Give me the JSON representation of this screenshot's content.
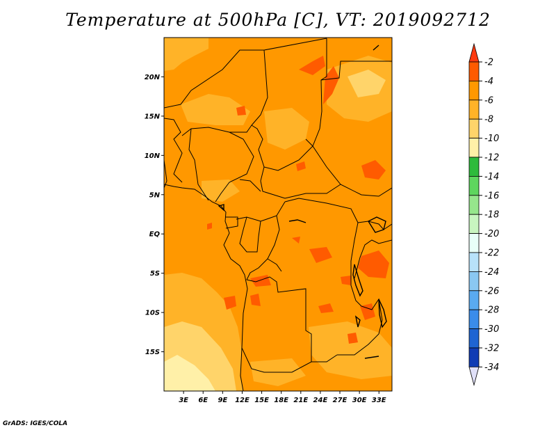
{
  "title": "Temperature at 500hPa [C], VT: 2019092712",
  "credit": "GrADS: IGES/COLA",
  "map": {
    "lon_range": [
      0,
      35
    ],
    "lat_range": [
      -20,
      25
    ],
    "lon_ticks": [
      {
        "value": 3,
        "label": "3E"
      },
      {
        "value": 6,
        "label": "6E"
      },
      {
        "value": 9,
        "label": "9E"
      },
      {
        "value": 12,
        "label": "12E"
      },
      {
        "value": 15,
        "label": "15E"
      },
      {
        "value": 18,
        "label": "18E"
      },
      {
        "value": 21,
        "label": "21E"
      },
      {
        "value": 24,
        "label": "24E"
      },
      {
        "value": 27,
        "label": "27E"
      },
      {
        "value": 30,
        "label": "30E"
      },
      {
        "value": 33,
        "label": "33E"
      }
    ],
    "lat_ticks": [
      {
        "value": 20,
        "label": "20N"
      },
      {
        "value": 15,
        "label": "15N"
      },
      {
        "value": 10,
        "label": "10N"
      },
      {
        "value": 5,
        "label": "5N"
      },
      {
        "value": 0,
        "label": "EQ"
      },
      {
        "value": -5,
        "label": "5S"
      },
      {
        "value": -10,
        "label": "10S"
      },
      {
        "value": -15,
        "label": "15S"
      }
    ]
  },
  "colorbar": {
    "labels": [
      "-2",
      "-4",
      "-6",
      "-8",
      "-10",
      "-12",
      "-14",
      "-16",
      "-18",
      "-20",
      "-22",
      "-24",
      "-26",
      "-28",
      "-30",
      "-32",
      "-34"
    ],
    "colors": [
      "#ff5b00",
      "#ff9800",
      "#ffb328",
      "#ffd46a",
      "#fff0a8",
      "#2ebb3c",
      "#5ed65e",
      "#96e68c",
      "#c8f5c0",
      "#e8fff8",
      "#b8e2fa",
      "#8ac8f2",
      "#5aaaf0",
      "#3a8cea",
      "#1e64d2",
      "#103cb4",
      "#0a1478"
    ],
    "top_color": "#ff3a10",
    "bottom_color": "#e0e0f8"
  }
}
